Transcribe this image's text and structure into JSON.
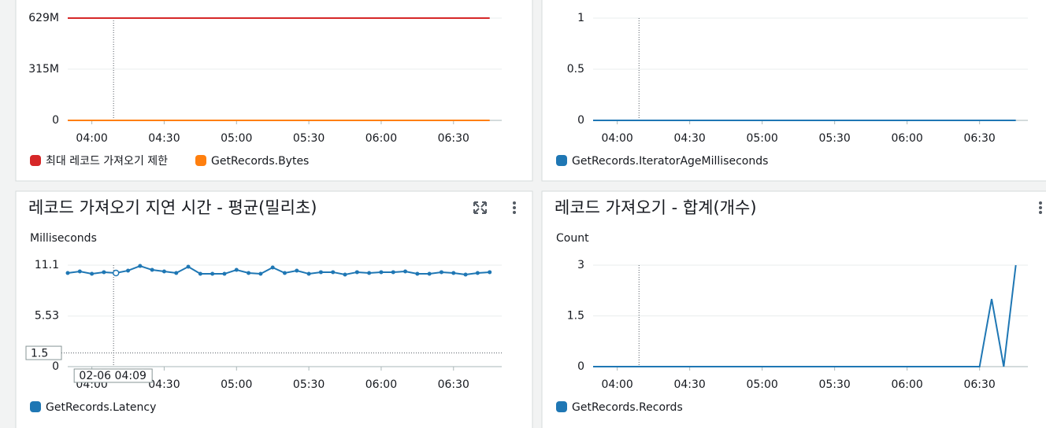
{
  "chart_data": [
    {
      "type": "line",
      "x": [
        "03:50",
        "03:55",
        "04:00",
        "04:05",
        "04:10",
        "04:15",
        "04:20",
        "04:25",
        "04:30",
        "04:35",
        "04:40",
        "04:45",
        "04:50",
        "04:55",
        "05:00",
        "05:05",
        "05:10",
        "05:15",
        "05:20",
        "05:25",
        "05:30",
        "05:35",
        "05:40",
        "05:45",
        "05:50",
        "05:55",
        "06:00",
        "06:05",
        "06:10",
        "06:15",
        "06:20",
        "06:25",
        "06:30",
        "06:35",
        "06:40",
        "06:45"
      ],
      "xlim": [
        "03:50",
        "06:50"
      ],
      "xticks": [
        "04:00",
        "04:30",
        "05:00",
        "05:30",
        "06:00",
        "06:30"
      ],
      "ylim": [
        0,
        629000000
      ],
      "yticks": [
        0,
        {
          "value": 315000000,
          "label": "315M"
        },
        {
          "value": 629000000,
          "label": "629M"
        }
      ],
      "grid": true,
      "legend": "bottom",
      "series": [
        {
          "name": "최대 레코드 가져오기 제한",
          "color": "#d62728",
          "values": [
            629000000,
            629000000,
            629000000,
            629000000,
            629000000,
            629000000,
            629000000,
            629000000,
            629000000,
            629000000,
            629000000,
            629000000,
            629000000,
            629000000,
            629000000,
            629000000,
            629000000,
            629000000,
            629000000,
            629000000,
            629000000,
            629000000,
            629000000,
            629000000,
            629000000,
            629000000,
            629000000,
            629000000,
            629000000,
            629000000,
            629000000,
            629000000,
            629000000,
            629000000,
            629000000,
            629000000
          ]
        },
        {
          "name": "GetRecords.Bytes",
          "color": "#ff7f0e",
          "values": [
            0,
            0,
            0,
            0,
            0,
            0,
            0,
            0,
            0,
            0,
            0,
            0,
            0,
            0,
            0,
            0,
            0,
            0,
            0,
            0,
            0,
            0,
            0,
            0,
            0,
            0,
            0,
            0,
            0,
            0,
            0,
            0,
            0,
            0,
            0,
            0
          ]
        }
      ]
    },
    {
      "type": "line",
      "x": [
        "03:50",
        "03:55",
        "04:00",
        "04:05",
        "04:10",
        "04:15",
        "04:20",
        "04:25",
        "04:30",
        "04:35",
        "04:40",
        "04:45",
        "04:50",
        "04:55",
        "05:00",
        "05:05",
        "05:10",
        "05:15",
        "05:20",
        "05:25",
        "05:30",
        "05:35",
        "05:40",
        "05:45",
        "05:50",
        "05:55",
        "06:00",
        "06:05",
        "06:10",
        "06:15",
        "06:20",
        "06:25",
        "06:30",
        "06:35",
        "06:40",
        "06:45"
      ],
      "xlim": [
        "03:50",
        "06:50"
      ],
      "xticks": [
        "04:00",
        "04:30",
        "05:00",
        "05:30",
        "06:00",
        "06:30"
      ],
      "ylim": [
        0,
        1
      ],
      "yticks": [
        0,
        0.5,
        1
      ],
      "grid": true,
      "legend": "bottom",
      "series": [
        {
          "name": "GetRecords.IteratorAgeMilliseconds",
          "color": "#1f77b4",
          "values": [
            0,
            0,
            0,
            0,
            0,
            0,
            0,
            0,
            0,
            0,
            0,
            0,
            0,
            0,
            0,
            0,
            0,
            0,
            0,
            0,
            0,
            0,
            0,
            0,
            0,
            0,
            0,
            0,
            0,
            0,
            0,
            0,
            0,
            0,
            0,
            0
          ]
        }
      ]
    },
    {
      "type": "line",
      "title": "레코드 가져오기 지연 시간 - 평균(밀리초)",
      "y_label": "Milliseconds",
      "x": [
        "03:50",
        "03:55",
        "04:00",
        "04:05",
        "04:10",
        "04:15",
        "04:20",
        "04:25",
        "04:30",
        "04:35",
        "04:40",
        "04:45",
        "04:50",
        "04:55",
        "05:00",
        "05:05",
        "05:10",
        "05:15",
        "05:20",
        "05:25",
        "05:30",
        "05:35",
        "05:40",
        "05:45",
        "05:50",
        "05:55",
        "06:00",
        "06:05",
        "06:10",
        "06:15",
        "06:20",
        "06:25",
        "06:30",
        "06:35",
        "06:40",
        "06:45"
      ],
      "xlim": [
        "03:50",
        "06:50"
      ],
      "xticks": [
        "04:00",
        "04:30",
        "05:00",
        "05:30",
        "06:00",
        "06:30"
      ],
      "ylim": [
        0,
        11.1
      ],
      "yticks": [
        0,
        5.53,
        11.1
      ],
      "grid": true,
      "legend": "bottom",
      "markers": true,
      "threshold": {
        "value": 1.5,
        "label": "1.5"
      },
      "cursor_label": "02-06 04:09",
      "series": [
        {
          "name": "GetRecords.Latency",
          "color": "#1f77b4",
          "values": [
            10.24,
            10.41,
            10.15,
            10.33,
            10.24,
            10.5,
            11.01,
            10.58,
            10.41,
            10.24,
            10.93,
            10.15,
            10.15,
            10.15,
            10.58,
            10.24,
            10.15,
            10.84,
            10.24,
            10.5,
            10.15,
            10.33,
            10.33,
            10.07,
            10.33,
            10.24,
            10.33,
            10.33,
            10.41,
            10.15,
            10.15,
            10.33,
            10.24,
            10.07,
            10.24,
            10.33
          ]
        }
      ]
    },
    {
      "type": "line",
      "title": "레코드 가져오기 - 합계(개수)",
      "y_label": "Count",
      "x": [
        "03:50",
        "03:55",
        "04:00",
        "04:05",
        "04:10",
        "04:15",
        "04:20",
        "04:25",
        "04:30",
        "04:35",
        "04:40",
        "04:45",
        "04:50",
        "04:55",
        "05:00",
        "05:05",
        "05:10",
        "05:15",
        "05:20",
        "05:25",
        "05:30",
        "05:35",
        "05:40",
        "05:45",
        "05:50",
        "05:55",
        "06:00",
        "06:05",
        "06:10",
        "06:15",
        "06:20",
        "06:25",
        "06:30",
        "06:35",
        "06:40",
        "06:45"
      ],
      "xlim": [
        "03:50",
        "06:50"
      ],
      "xticks": [
        "04:00",
        "04:30",
        "05:00",
        "05:30",
        "06:00",
        "06:30"
      ],
      "ylim": [
        0,
        3
      ],
      "yticks": [
        0,
        1.5,
        3
      ],
      "grid": true,
      "legend": "bottom",
      "series": [
        {
          "name": "GetRecords.Records",
          "color": "#1f77b4",
          "values": [
            0,
            0,
            0,
            0,
            0,
            0,
            0,
            0,
            0,
            0,
            0,
            0,
            0,
            0,
            0,
            0,
            0,
            0,
            0,
            0,
            0,
            0,
            0,
            0,
            0,
            0,
            0,
            0,
            0,
            0,
            0,
            0,
            0,
            2,
            0,
            3
          ]
        }
      ]
    }
  ]
}
